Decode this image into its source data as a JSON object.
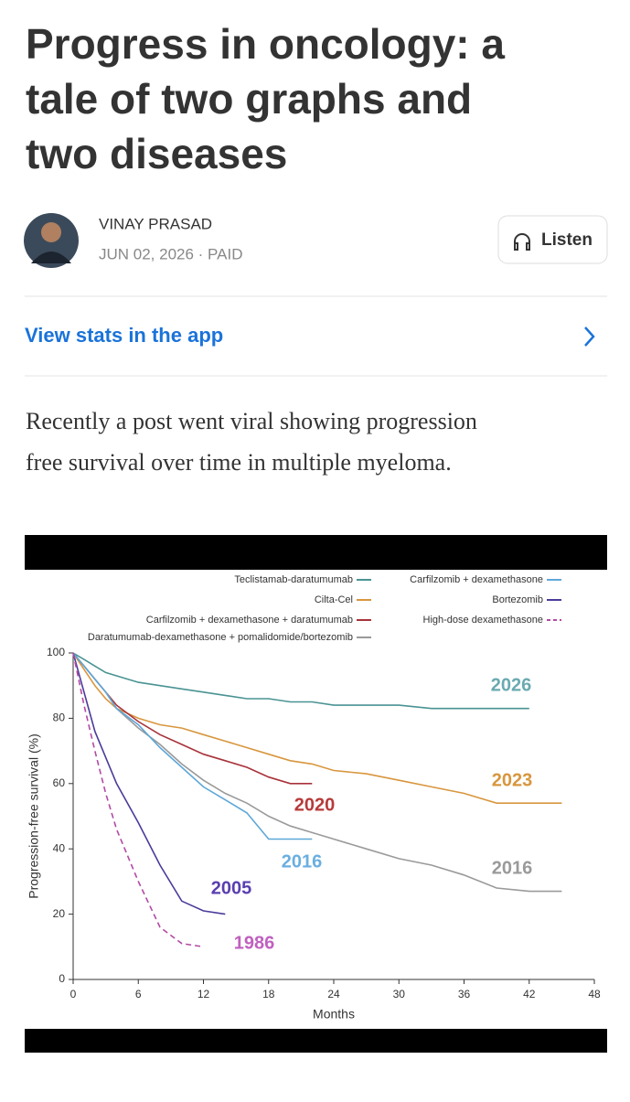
{
  "article": {
    "title_lines": [
      "Progress in oncology: a",
      "tale of two graphs and",
      "two diseases"
    ],
    "author": "VINAY PRASAD",
    "meta": "JUN 02, 2026 · PAID",
    "listen": "Listen",
    "stats_link": "View stats in the app",
    "body_lines": [
      "Recently a post went viral showing progression",
      "free survival over time in multiple myeloma."
    ]
  },
  "chart_data": {
    "type": "line",
    "x_label": "Months",
    "y_label": "Progression-free survival (%)",
    "x": [
      0,
      1,
      2,
      3,
      4,
      6,
      8,
      10,
      12,
      14,
      16,
      18,
      20,
      22,
      24,
      27,
      30,
      33,
      36,
      39,
      42,
      45
    ],
    "xlim": [
      0,
      48
    ],
    "xticks": [
      0,
      6,
      12,
      18,
      24,
      30,
      36,
      42,
      48
    ],
    "ylim": [
      0,
      100
    ],
    "yticks": [
      0,
      20,
      40,
      60,
      80,
      100
    ],
    "series": [
      {
        "name": "Teclistamab-daratumumab",
        "color": "#4a9393",
        "style": "solid",
        "values": [
          100,
          98,
          96,
          94,
          93,
          91,
          90,
          89,
          88,
          87,
          86,
          86,
          85,
          85,
          84,
          84,
          84,
          83,
          83,
          83,
          83,
          null
        ]
      },
      {
        "name": "Cilta-Cel",
        "color": "#d8963e",
        "style": "solid",
        "values": [
          100,
          95,
          90,
          86,
          83,
          80,
          78,
          77,
          75,
          73,
          71,
          69,
          67,
          66,
          64,
          63,
          61,
          59,
          57,
          54,
          54,
          54
        ]
      },
      {
        "name": "Carfilzomib + dexamethasone + daratumumab",
        "color": "#a8323a",
        "style": "solid",
        "values": [
          100,
          96,
          92,
          88,
          84,
          79,
          75,
          72,
          69,
          67,
          65,
          62,
          60,
          60,
          null,
          null,
          null,
          null,
          null,
          null,
          null,
          null
        ]
      },
      {
        "name": "Daratumumab-dexamethasone + pomalidomide/bortezomib",
        "color": "#9a9a9a",
        "style": "solid",
        "values": [
          100,
          96,
          92,
          88,
          83,
          77,
          72,
          66,
          61,
          57,
          54,
          50,
          47,
          45,
          43,
          40,
          37,
          35,
          32,
          28,
          27,
          27
        ]
      },
      {
        "name": "Carfilzomib + dexamethasone",
        "color": "#5ea7d8",
        "style": "solid",
        "values": [
          100,
          96,
          92,
          88,
          83,
          78,
          71,
          65,
          59,
          55,
          51,
          43,
          43,
          43,
          null,
          null,
          null,
          null,
          null,
          null,
          null,
          null
        ]
      },
      {
        "name": "Bortezomib",
        "color": "#4b3b9b",
        "style": "solid",
        "values": [
          100,
          88,
          76,
          68,
          60,
          48,
          35,
          24,
          21,
          20,
          null,
          null,
          null,
          null,
          null,
          null,
          null,
          null,
          null,
          null,
          null,
          null
        ]
      },
      {
        "name": "High-dose dexamethasone",
        "color": "#b24aa3",
        "style": "dashed",
        "values": [
          100,
          84,
          70,
          57,
          46,
          30,
          16,
          11,
          10,
          null,
          null,
          null,
          null,
          null,
          null,
          null,
          null,
          null,
          null,
          null,
          null,
          null
        ]
      }
    ],
    "annotations": [
      {
        "text": "2026",
        "color": "#6aaab0"
      },
      {
        "text": "2023",
        "color": "#d8963e"
      },
      {
        "text": "2020",
        "color": "#b83a3a"
      },
      {
        "text": "2016",
        "color": "#6aaee0"
      },
      {
        "text": "2016",
        "color": "#9a9a9a"
      },
      {
        "text": "2005",
        "color": "#5a3fb0"
      },
      {
        "text": "1986",
        "color": "#c060c0"
      }
    ]
  }
}
